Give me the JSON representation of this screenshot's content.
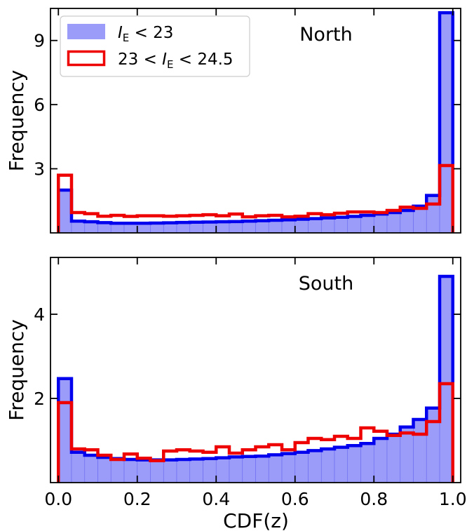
{
  "chart_data": {
    "type": "bar",
    "xlabel": "CDF(z)",
    "x_ticks": [
      "0.0",
      "0.2",
      "0.4",
      "0.6",
      "0.8",
      "1.0"
    ],
    "xlim": [
      -0.02,
      1.02
    ],
    "bin_edges": [
      0.0,
      0.0333,
      0.0667,
      0.1,
      0.1333,
      0.1667,
      0.2,
      0.2333,
      0.2667,
      0.3,
      0.3333,
      0.3667,
      0.4,
      0.4333,
      0.4667,
      0.5,
      0.5333,
      0.5667,
      0.6,
      0.6333,
      0.6667,
      0.7,
      0.7333,
      0.7667,
      0.8,
      0.8333,
      0.8667,
      0.9,
      0.9333,
      0.9667,
      1.0
    ],
    "legend": {
      "placement": "upper-left",
      "entries": [
        {
          "label_pre": "I",
          "label_sub": "E",
          "label_post": " < 23",
          "style": "filled"
        },
        {
          "label_pre": "23 < I",
          "label_sub": "E",
          "label_post": " < 24.5",
          "style": "outline"
        }
      ]
    },
    "panels": [
      {
        "title": "North",
        "ylabel": "Frequency",
        "ylim": [
          0,
          10.5
        ],
        "y_ticks": [
          3,
          6,
          9
        ],
        "series": [
          {
            "name_ref": "legend.0",
            "values": [
              2.0,
              0.55,
              0.52,
              0.48,
              0.45,
              0.45,
              0.45,
              0.46,
              0.47,
              0.49,
              0.5,
              0.51,
              0.52,
              0.53,
              0.55,
              0.57,
              0.59,
              0.61,
              0.64,
              0.67,
              0.7,
              0.73,
              0.77,
              0.82,
              0.88,
              0.95,
              1.05,
              1.25,
              1.75,
              10.3
            ]
          },
          {
            "name_ref": "legend.1",
            "values": [
              2.7,
              0.95,
              0.9,
              0.78,
              0.82,
              0.77,
              0.8,
              0.8,
              0.78,
              0.8,
              0.82,
              0.85,
              0.8,
              0.88,
              0.75,
              0.8,
              0.82,
              0.75,
              0.78,
              0.9,
              0.85,
              0.92,
              0.98,
              0.98,
              0.95,
              1.05,
              1.2,
              1.15,
              1.35,
              3.15
            ]
          }
        ]
      },
      {
        "title": "South",
        "ylabel": "Frequency",
        "ylim": [
          0,
          5.35
        ],
        "y_ticks": [
          2,
          4
        ],
        "series": [
          {
            "name_ref": "legend.0",
            "values": [
              2.47,
              0.72,
              0.65,
              0.6,
              0.57,
              0.55,
              0.54,
              0.54,
              0.54,
              0.55,
              0.56,
              0.57,
              0.59,
              0.61,
              0.62,
              0.63,
              0.66,
              0.69,
              0.72,
              0.76,
              0.8,
              0.84,
              0.88,
              0.93,
              1.05,
              1.15,
              1.32,
              1.5,
              1.77,
              4.9
            ]
          },
          {
            "name_ref": "legend.1",
            "values": [
              1.9,
              0.8,
              0.78,
              0.65,
              0.55,
              0.68,
              0.58,
              0.52,
              0.75,
              0.78,
              0.75,
              0.72,
              0.85,
              0.7,
              0.78,
              0.85,
              0.9,
              0.78,
              0.95,
              1.05,
              1.02,
              1.1,
              1.05,
              1.3,
              1.22,
              1.12,
              1.18,
              1.15,
              1.45,
              2.35
            ]
          }
        ]
      }
    ]
  },
  "colors": {
    "filled_face": "#9b9bf9",
    "filled_edge": "#0000ee",
    "bin_edge": "#6a6af0",
    "outline": "#ee0000",
    "axes": "#000000"
  }
}
